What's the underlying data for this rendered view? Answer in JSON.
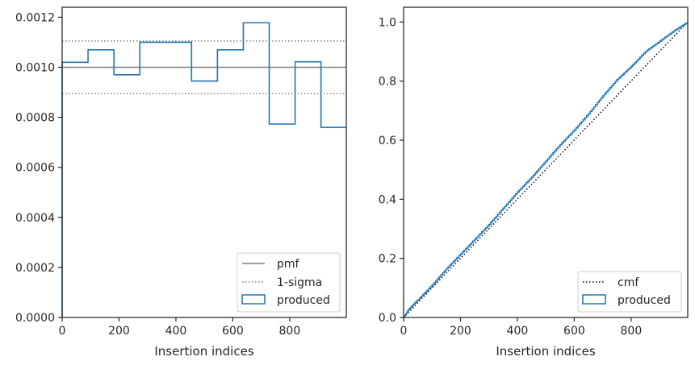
{
  "chart_data": [
    {
      "type": "line",
      "xlabel": "Insertion indices",
      "ylabel": "",
      "xlim": [
        0,
        999
      ],
      "ylim": [
        0,
        0.00124
      ],
      "grid": false,
      "legend_placement": "lower-right",
      "xticks": [
        {
          "value": 0,
          "label": "0"
        },
        {
          "value": 200,
          "label": "200"
        },
        {
          "value": 400,
          "label": "400"
        },
        {
          "value": 600,
          "label": "600"
        },
        {
          "value": 800,
          "label": "800"
        }
      ],
      "yticks": [
        {
          "value": 0,
          "label": "0.0000"
        },
        {
          "value": 0.0002,
          "label": "0.0002"
        },
        {
          "value": 0.0004,
          "label": "0.0004"
        },
        {
          "value": 0.0006,
          "label": "0.0006"
        },
        {
          "value": 0.0008,
          "label": "0.0008"
        },
        {
          "value": 0.001,
          "label": "0.0010"
        },
        {
          "value": 0.0012,
          "label": "0.0012"
        }
      ],
      "series": [
        {
          "name": "pmf",
          "kind": "hline",
          "y": 0.001,
          "color": "#808080",
          "dash": "solid"
        },
        {
          "name": "1-sigma",
          "kind": "hlines",
          "y": [
            0.001105,
            0.000895
          ],
          "color": "#808080",
          "dash": "dotted"
        },
        {
          "name": "produced",
          "kind": "step-hist",
          "color": "#1f77b4",
          "bin_edges": [
            0,
            91,
            182,
            273,
            364,
            455,
            546,
            637,
            728,
            819,
            910,
            999
          ],
          "values": [
            0.00102,
            0.00107,
            0.00097,
            0.0011,
            0.0011,
            0.000945,
            0.00107,
            0.001178,
            0.000773,
            0.001022,
            0.00076
          ]
        }
      ],
      "legend": [
        "pmf",
        "1-sigma",
        "produced"
      ]
    },
    {
      "type": "line",
      "xlabel": "Insertion indices",
      "ylabel": "",
      "xlim": [
        0,
        999
      ],
      "ylim": [
        0,
        1.05
      ],
      "grid": false,
      "legend_placement": "lower-right",
      "xticks": [
        {
          "value": 0,
          "label": "0"
        },
        {
          "value": 200,
          "label": "200"
        },
        {
          "value": 400,
          "label": "400"
        },
        {
          "value": 600,
          "label": "600"
        },
        {
          "value": 800,
          "label": "800"
        }
      ],
      "yticks": [
        {
          "value": 0,
          "label": "0.0"
        },
        {
          "value": 0.2,
          "label": "0.2"
        },
        {
          "value": 0.4,
          "label": "0.4"
        },
        {
          "value": 0.6,
          "label": "0.6"
        },
        {
          "value": 0.8,
          "label": "0.8"
        },
        {
          "value": 1.0,
          "label": "1.0"
        }
      ],
      "series": [
        {
          "name": "cmf",
          "kind": "line",
          "color": "#000000",
          "dash": "dotted",
          "x": [
            0,
            999
          ],
          "y": [
            0,
            1
          ]
        },
        {
          "name": "produced",
          "kind": "step-line",
          "color": "#1f77b4",
          "x": [
            0,
            20,
            50,
            100,
            150,
            200,
            250,
            300,
            350,
            400,
            450,
            500,
            550,
            600,
            650,
            700,
            750,
            800,
            850,
            900,
            950,
            999
          ],
          "y": [
            0,
            0.03,
            0.06,
            0.11,
            0.165,
            0.215,
            0.265,
            0.315,
            0.37,
            0.425,
            0.475,
            0.53,
            0.585,
            0.635,
            0.69,
            0.75,
            0.805,
            0.85,
            0.9,
            0.935,
            0.97,
            1.0
          ]
        }
      ],
      "legend": [
        "cmf",
        "produced"
      ]
    }
  ]
}
